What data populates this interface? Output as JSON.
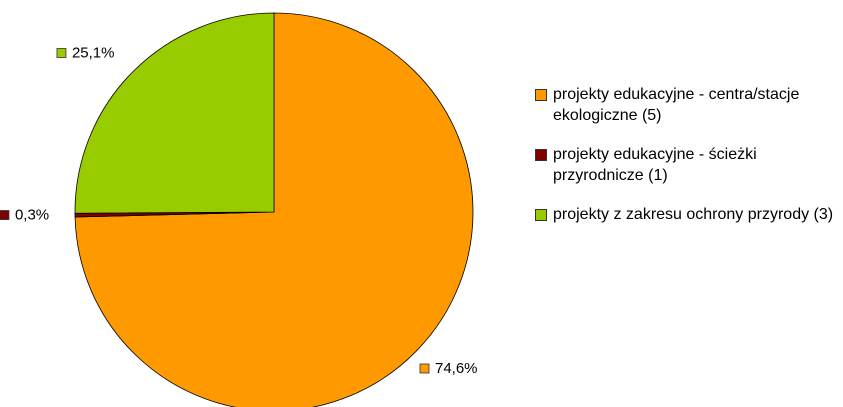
{
  "chart_data": {
    "type": "pie",
    "categories": [
      "projekty edukacyjne - centra/stacje ekologiczne (5)",
      "projekty edukacyjne - ścieżki przyrodnicze (1)",
      "projekty z zakresu ochrony przyrody (3)"
    ],
    "values": [
      74.6,
      0.3,
      25.1
    ],
    "value_labels": [
      "74,6%",
      "0,3%",
      "25,1%"
    ],
    "colors": [
      "#ff9900",
      "#800000",
      "#99cc00"
    ],
    "legend": "right"
  }
}
